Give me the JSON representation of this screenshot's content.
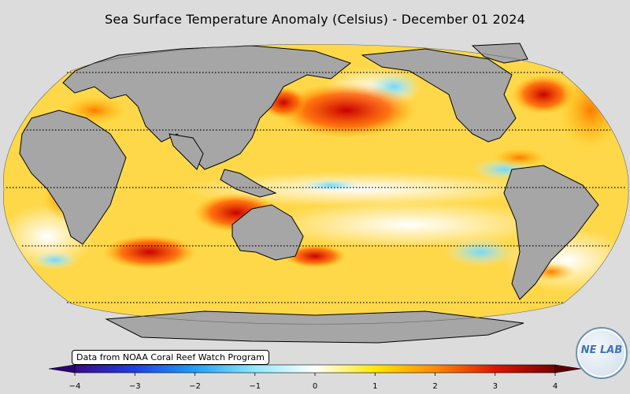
{
  "title": "Sea Surface Temperature Anomaly (Celsius) - December 01 2024",
  "credit": "Data from NOAA Coral Reef Watch Program",
  "logo": {
    "text": "NE LAB",
    "icon": "globe-lab-logo-icon"
  },
  "colorbar": {
    "min": -4,
    "max": 4,
    "ticks": [
      "−4",
      "−3",
      "−2",
      "−1",
      "0",
      "1",
      "2",
      "3",
      "4"
    ],
    "stops": [
      "#3a0a8a",
      "#1f3fe6",
      "#1f9ff5",
      "#8fe8ff",
      "#ffffff",
      "#ffe800",
      "#ff8a00",
      "#e01400",
      "#7a0000"
    ]
  },
  "map": {
    "projection": "Robinson, Pacific-centered",
    "land_color": "#a6a6a6",
    "graticule": "dotted latitude lines"
  }
}
